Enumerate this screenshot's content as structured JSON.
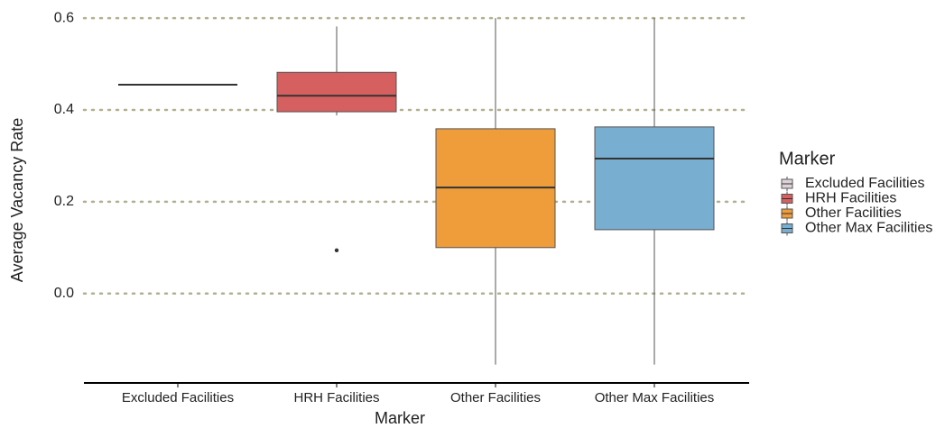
{
  "chart_data": {
    "type": "box",
    "x_label": "Marker",
    "y_label": "Average Vacancy Rate",
    "series": [
      {
        "name": "Excluded Facilities",
        "color": "#dcd2d8",
        "min": 0.455,
        "q1": 0.455,
        "median": 0.455,
        "q3": 0.455,
        "max": 0.455,
        "outliers": []
      },
      {
        "name": "HRH Facilities",
        "color": "#d65f5f",
        "min": 0.388,
        "q1": 0.396,
        "median": 0.431,
        "q3": 0.482,
        "max": 0.582,
        "outliers": [
          0.094
        ]
      },
      {
        "name": "Other Facilities",
        "color": "#ef9c3b",
        "min": -0.155,
        "q1": 0.1,
        "median": 0.231,
        "q3": 0.359,
        "max": 0.6,
        "outliers": []
      },
      {
        "name": "Other Max Facilities",
        "color": "#78aecf",
        "min": -0.155,
        "q1": 0.139,
        "median": 0.294,
        "q3": 0.363,
        "max": 0.6,
        "outliers": []
      }
    ],
    "ylim": [
      -0.195,
      0.62
    ],
    "yticks": [
      {
        "value": 0,
        "label": "0.0"
      },
      0.2,
      0.4,
      0.6
    ],
    "grid": true,
    "legend": {
      "title": "Marker",
      "position": "right"
    }
  }
}
